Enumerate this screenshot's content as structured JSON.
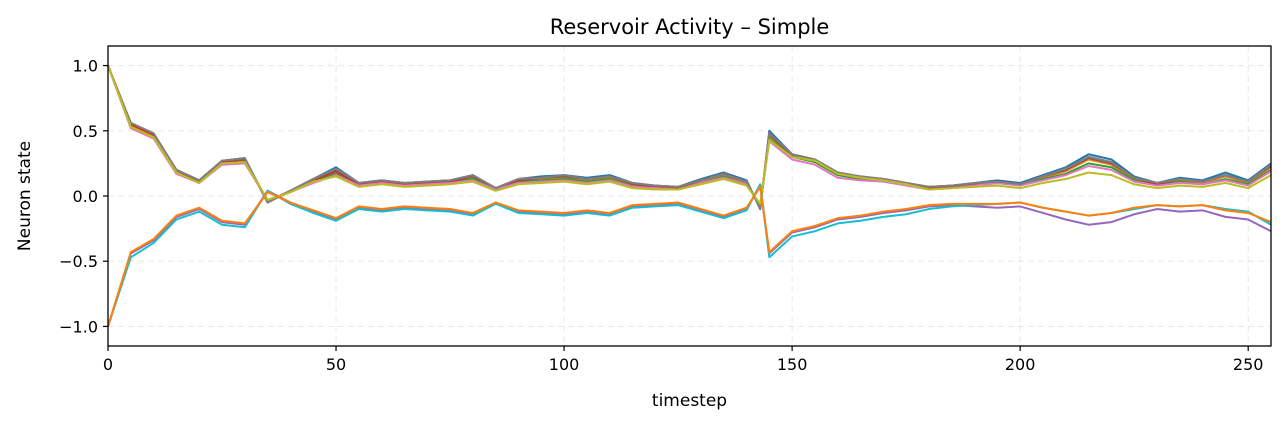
{
  "chart_data": {
    "type": "line",
    "title": "Reservoir Activity – Simple",
    "xlabel": "timestep",
    "ylabel": "Neuron state",
    "xlim": [
      0,
      255
    ],
    "ylim": [
      -1.15,
      1.15
    ],
    "xticks": [
      0,
      50,
      100,
      150,
      200,
      250
    ],
    "yticks": [
      -1.0,
      -0.5,
      0.0,
      0.5,
      1.0
    ],
    "xtick_labels": [
      "0",
      "50",
      "100",
      "150",
      "200",
      "250"
    ],
    "ytick_labels": [
      "−1.0",
      "−0.5",
      "0.0",
      "0.5",
      "1.0"
    ],
    "grid": true,
    "legend": "none",
    "x": [
      0,
      5,
      10,
      15,
      20,
      25,
      30,
      35,
      40,
      45,
      50,
      55,
      60,
      65,
      70,
      75,
      80,
      85,
      90,
      95,
      100,
      105,
      110,
      115,
      120,
      125,
      130,
      135,
      140,
      143,
      145,
      150,
      155,
      160,
      165,
      170,
      175,
      180,
      185,
      190,
      195,
      200,
      205,
      210,
      215,
      220,
      225,
      230,
      235,
      240,
      245,
      250,
      255
    ],
    "series": [
      {
        "color": "#1f77b4",
        "values": [
          1.0,
          0.55,
          0.47,
          0.2,
          0.12,
          0.27,
          0.29,
          -0.05,
          0.04,
          0.13,
          0.22,
          0.1,
          0.12,
          0.1,
          0.11,
          0.12,
          0.16,
          0.06,
          0.13,
          0.15,
          0.16,
          0.14,
          0.16,
          0.1,
          0.08,
          0.07,
          0.13,
          0.18,
          0.12,
          -0.1,
          0.5,
          0.32,
          0.28,
          0.18,
          0.15,
          0.13,
          0.1,
          0.07,
          0.08,
          0.1,
          0.12,
          0.1,
          0.16,
          0.22,
          0.32,
          0.28,
          0.15,
          0.1,
          0.14,
          0.12,
          0.18,
          0.12,
          0.25
        ]
      },
      {
        "color": "#ff7f0e",
        "values": [
          1.0,
          0.54,
          0.46,
          0.19,
          0.11,
          0.26,
          0.27,
          -0.04,
          0.03,
          0.12,
          0.18,
          0.09,
          0.11,
          0.09,
          0.1,
          0.11,
          0.14,
          0.05,
          0.12,
          0.13,
          0.14,
          0.12,
          0.14,
          0.08,
          0.07,
          0.06,
          0.11,
          0.16,
          0.1,
          -0.08,
          0.46,
          0.31,
          0.27,
          0.17,
          0.14,
          0.12,
          0.09,
          0.06,
          0.07,
          0.09,
          0.11,
          0.09,
          0.14,
          0.19,
          0.28,
          0.24,
          0.13,
          0.09,
          0.12,
          0.1,
          0.15,
          0.1,
          0.22
        ]
      },
      {
        "color": "#2ca02c",
        "values": [
          1.0,
          0.53,
          0.45,
          0.18,
          0.1,
          0.25,
          0.26,
          -0.03,
          0.03,
          0.11,
          0.17,
          0.08,
          0.1,
          0.08,
          0.09,
          0.1,
          0.13,
          0.05,
          0.11,
          0.12,
          0.13,
          0.11,
          0.13,
          0.07,
          0.06,
          0.05,
          0.1,
          0.15,
          0.09,
          -0.07,
          0.44,
          0.3,
          0.26,
          0.16,
          0.13,
          0.12,
          0.09,
          0.06,
          0.07,
          0.08,
          0.1,
          0.08,
          0.13,
          0.17,
          0.25,
          0.22,
          0.12,
          0.08,
          0.11,
          0.09,
          0.13,
          0.09,
          0.2
        ]
      },
      {
        "color": "#d62728",
        "values": [
          1.0,
          0.55,
          0.47,
          0.19,
          0.11,
          0.26,
          0.28,
          -0.04,
          0.04,
          0.12,
          0.19,
          0.09,
          0.11,
          0.09,
          0.1,
          0.11,
          0.15,
          0.06,
          0.12,
          0.14,
          0.15,
          0.13,
          0.15,
          0.09,
          0.07,
          0.06,
          0.12,
          0.17,
          0.11,
          -0.09,
          0.48,
          0.31,
          0.27,
          0.17,
          0.14,
          0.13,
          0.1,
          0.06,
          0.07,
          0.09,
          0.11,
          0.09,
          0.15,
          0.2,
          0.3,
          0.26,
          0.14,
          0.09,
          0.13,
          0.11,
          0.16,
          0.11,
          0.24
        ]
      },
      {
        "color": "#9467bd",
        "values": [
          -1.0,
          -0.44,
          -0.34,
          -0.16,
          -0.1,
          -0.2,
          -0.22,
          0.04,
          -0.05,
          -0.12,
          -0.18,
          -0.09,
          -0.11,
          -0.09,
          -0.1,
          -0.11,
          -0.14,
          -0.05,
          -0.12,
          -0.13,
          -0.14,
          -0.12,
          -0.14,
          -0.08,
          -0.07,
          -0.06,
          -0.11,
          -0.16,
          -0.1,
          0.08,
          -0.44,
          -0.28,
          -0.24,
          -0.18,
          -0.16,
          -0.13,
          -0.11,
          -0.08,
          -0.07,
          -0.08,
          -0.09,
          -0.08,
          -0.13,
          -0.18,
          -0.22,
          -0.2,
          -0.14,
          -0.1,
          -0.12,
          -0.11,
          -0.16,
          -0.18,
          -0.27
        ]
      },
      {
        "color": "#8c564b",
        "values": [
          1.0,
          0.56,
          0.48,
          0.2,
          0.12,
          0.27,
          0.28,
          -0.05,
          0.04,
          0.13,
          0.2,
          0.1,
          0.12,
          0.1,
          0.11,
          0.12,
          0.15,
          0.06,
          0.13,
          0.14,
          0.15,
          0.13,
          0.15,
          0.09,
          0.08,
          0.07,
          0.12,
          0.17,
          0.11,
          -0.09,
          0.47,
          0.31,
          0.27,
          0.17,
          0.14,
          0.13,
          0.1,
          0.07,
          0.08,
          0.09,
          0.11,
          0.09,
          0.15,
          0.2,
          0.29,
          0.25,
          0.14,
          0.1,
          0.13,
          0.11,
          0.16,
          0.11,
          0.23
        ]
      },
      {
        "color": "#e377c2",
        "values": [
          1.0,
          0.52,
          0.44,
          0.17,
          0.1,
          0.24,
          0.25,
          -0.03,
          0.03,
          0.1,
          0.16,
          0.08,
          0.1,
          0.08,
          0.09,
          0.1,
          0.12,
          0.05,
          0.1,
          0.11,
          0.12,
          0.1,
          0.12,
          0.07,
          0.06,
          0.05,
          0.1,
          0.14,
          0.09,
          -0.07,
          0.42,
          0.28,
          0.24,
          0.14,
          0.12,
          0.11,
          0.08,
          0.05,
          0.06,
          0.08,
          0.1,
          0.08,
          0.12,
          0.16,
          0.23,
          0.2,
          0.11,
          0.08,
          0.1,
          0.09,
          0.12,
          0.08,
          0.19
        ]
      },
      {
        "color": "#7f7f7f",
        "values": [
          1.0,
          0.56,
          0.48,
          0.2,
          0.12,
          0.27,
          0.29,
          -0.05,
          0.04,
          0.13,
          0.21,
          0.1,
          0.12,
          0.1,
          0.11,
          0.12,
          0.16,
          0.06,
          0.13,
          0.14,
          0.16,
          0.13,
          0.15,
          0.1,
          0.08,
          0.07,
          0.12,
          0.17,
          0.11,
          -0.09,
          0.48,
          0.32,
          0.28,
          0.18,
          0.15,
          0.13,
          0.1,
          0.07,
          0.08,
          0.1,
          0.11,
          0.09,
          0.15,
          0.21,
          0.3,
          0.26,
          0.14,
          0.1,
          0.13,
          0.11,
          0.16,
          0.11,
          0.24
        ]
      },
      {
        "color": "#bcbd22",
        "values": [
          1.0,
          0.53,
          0.45,
          0.18,
          0.1,
          0.25,
          0.26,
          -0.03,
          0.03,
          0.11,
          0.15,
          0.07,
          0.09,
          0.07,
          0.08,
          0.09,
          0.11,
          0.04,
          0.09,
          0.1,
          0.11,
          0.09,
          0.11,
          0.06,
          0.05,
          0.05,
          0.09,
          0.13,
          0.08,
          -0.06,
          0.43,
          0.3,
          0.27,
          0.17,
          0.14,
          0.12,
          0.09,
          0.05,
          0.06,
          0.07,
          0.08,
          0.06,
          0.1,
          0.13,
          0.18,
          0.16,
          0.09,
          0.06,
          0.08,
          0.07,
          0.1,
          0.06,
          0.16
        ]
      },
      {
        "color": "#17becf",
        "values": [
          -1.0,
          -0.47,
          -0.36,
          -0.18,
          -0.12,
          -0.22,
          -0.24,
          0.04,
          -0.06,
          -0.13,
          -0.19,
          -0.1,
          -0.12,
          -0.1,
          -0.11,
          -0.12,
          -0.15,
          -0.06,
          -0.13,
          -0.14,
          -0.15,
          -0.13,
          -0.15,
          -0.09,
          -0.08,
          -0.07,
          -0.12,
          -0.17,
          -0.11,
          0.09,
          -0.47,
          -0.31,
          -0.27,
          -0.21,
          -0.19,
          -0.16,
          -0.14,
          -0.1,
          -0.08,
          -0.07,
          -0.06,
          -0.05,
          -0.09,
          -0.12,
          -0.15,
          -0.13,
          -0.1,
          -0.07,
          -0.08,
          -0.07,
          -0.1,
          -0.12,
          -0.22
        ]
      },
      {
        "color": "#ff7f0e",
        "values": [
          -1.0,
          -0.43,
          -0.33,
          -0.15,
          -0.09,
          -0.19,
          -0.21,
          0.03,
          -0.05,
          -0.11,
          -0.17,
          -0.08,
          -0.1,
          -0.08,
          -0.09,
          -0.1,
          -0.13,
          -0.05,
          -0.11,
          -0.12,
          -0.13,
          -0.11,
          -0.13,
          -0.07,
          -0.06,
          -0.05,
          -0.1,
          -0.15,
          -0.09,
          0.07,
          -0.43,
          -0.27,
          -0.23,
          -0.17,
          -0.15,
          -0.12,
          -0.1,
          -0.07,
          -0.06,
          -0.06,
          -0.06,
          -0.05,
          -0.09,
          -0.12,
          -0.15,
          -0.13,
          -0.09,
          -0.07,
          -0.08,
          -0.07,
          -0.11,
          -0.13,
          -0.2
        ]
      }
    ]
  }
}
